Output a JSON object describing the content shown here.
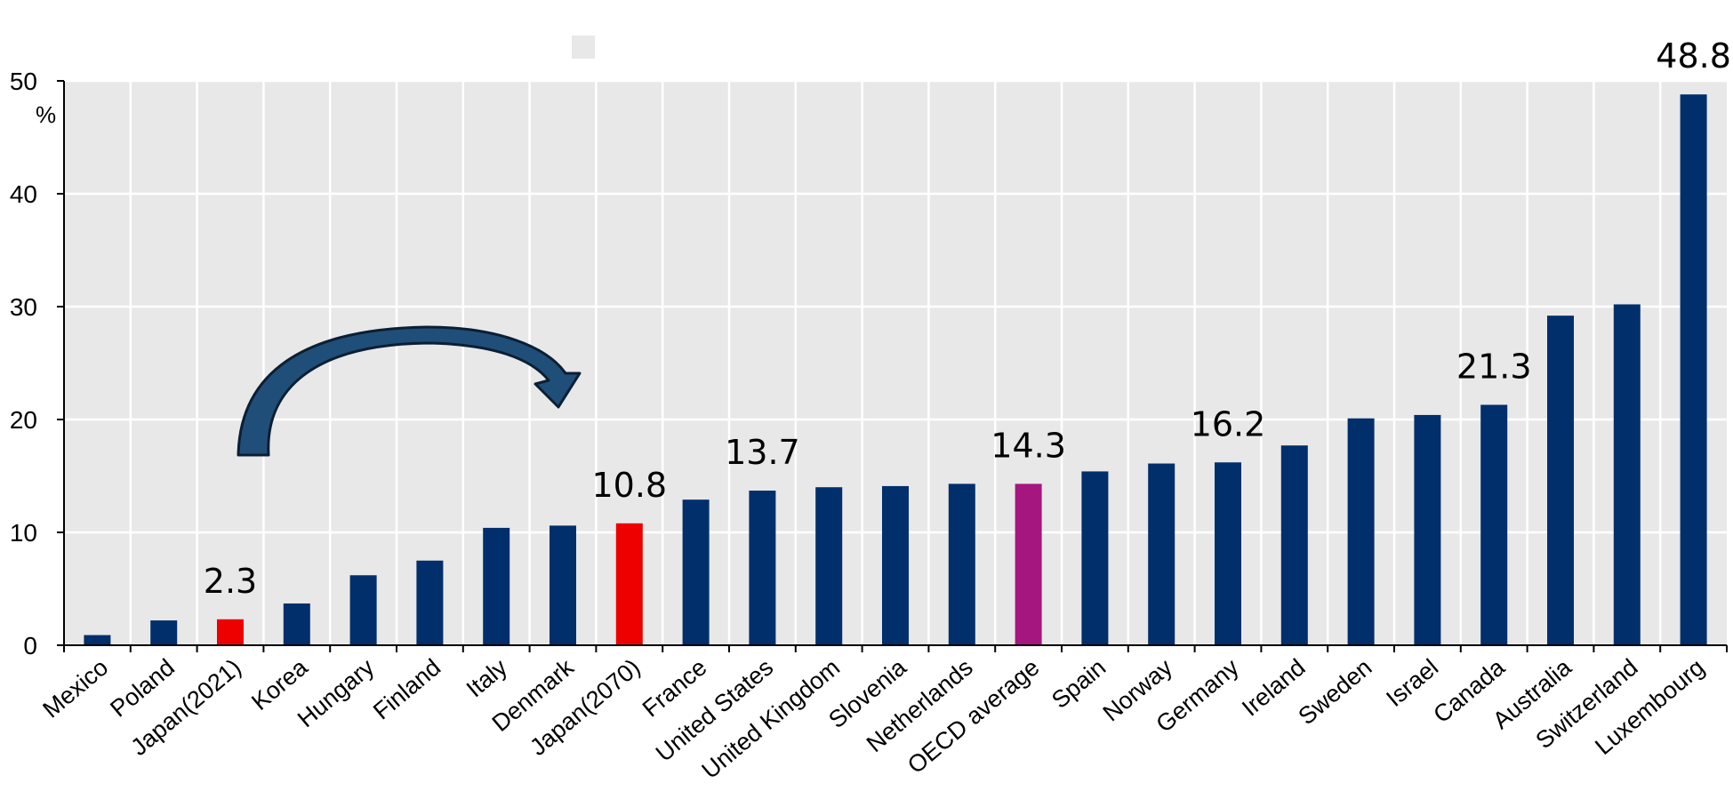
{
  "chart_data": {
    "type": "bar",
    "ylabel": "%",
    "ylim": [
      0,
      50
    ],
    "yticks": [
      0,
      10,
      20,
      30,
      40,
      50
    ],
    "grid": true,
    "categories": [
      "Mexico",
      "Poland",
      "Japan(2021)",
      "Korea",
      "Hungary",
      "Finland",
      "Italy",
      "Denmark",
      "Japan(2070)",
      "France",
      "United States",
      "United Kingdom",
      "Slovenia",
      "Netherlands",
      "OECD average",
      "Spain",
      "Norway",
      "Germany",
      "Ireland",
      "Sweden",
      "Israel",
      "Canada",
      "Australia",
      "Switzerland",
      "Luxembourg"
    ],
    "values": [
      0.9,
      2.2,
      2.3,
      3.7,
      6.2,
      7.5,
      10.4,
      10.6,
      10.8,
      12.9,
      13.7,
      14.0,
      14.1,
      14.3,
      14.3,
      15.4,
      16.1,
      16.2,
      17.7,
      20.1,
      20.4,
      21.3,
      29.2,
      30.2,
      48.8
    ],
    "colors": [
      "#002F6C",
      "#002F6C",
      "#EE0000",
      "#002F6C",
      "#002F6C",
      "#002F6C",
      "#002F6C",
      "#002F6C",
      "#EE0000",
      "#002F6C",
      "#002F6C",
      "#002F6C",
      "#002F6C",
      "#002F6C",
      "#A5177F",
      "#002F6C",
      "#002F6C",
      "#002F6C",
      "#002F6C",
      "#002F6C",
      "#002F6C",
      "#002F6C",
      "#002F6C",
      "#002F6C",
      "#002F6C"
    ],
    "data_labels": [
      {
        "category": "Japan(2021)",
        "text": "2.3"
      },
      {
        "category": "Japan(2070)",
        "text": "10.8"
      },
      {
        "category": "United States",
        "text": "13.7"
      },
      {
        "category": "OECD average",
        "text": "14.3"
      },
      {
        "category": "Germany",
        "text": "16.2"
      },
      {
        "category": "Canada",
        "text": "21.3"
      },
      {
        "category": "Luxembourg",
        "text": "48.8"
      }
    ],
    "annotations": [
      {
        "type": "arrow",
        "from": "Japan(2021)",
        "to": "Japan(2070)"
      }
    ]
  }
}
